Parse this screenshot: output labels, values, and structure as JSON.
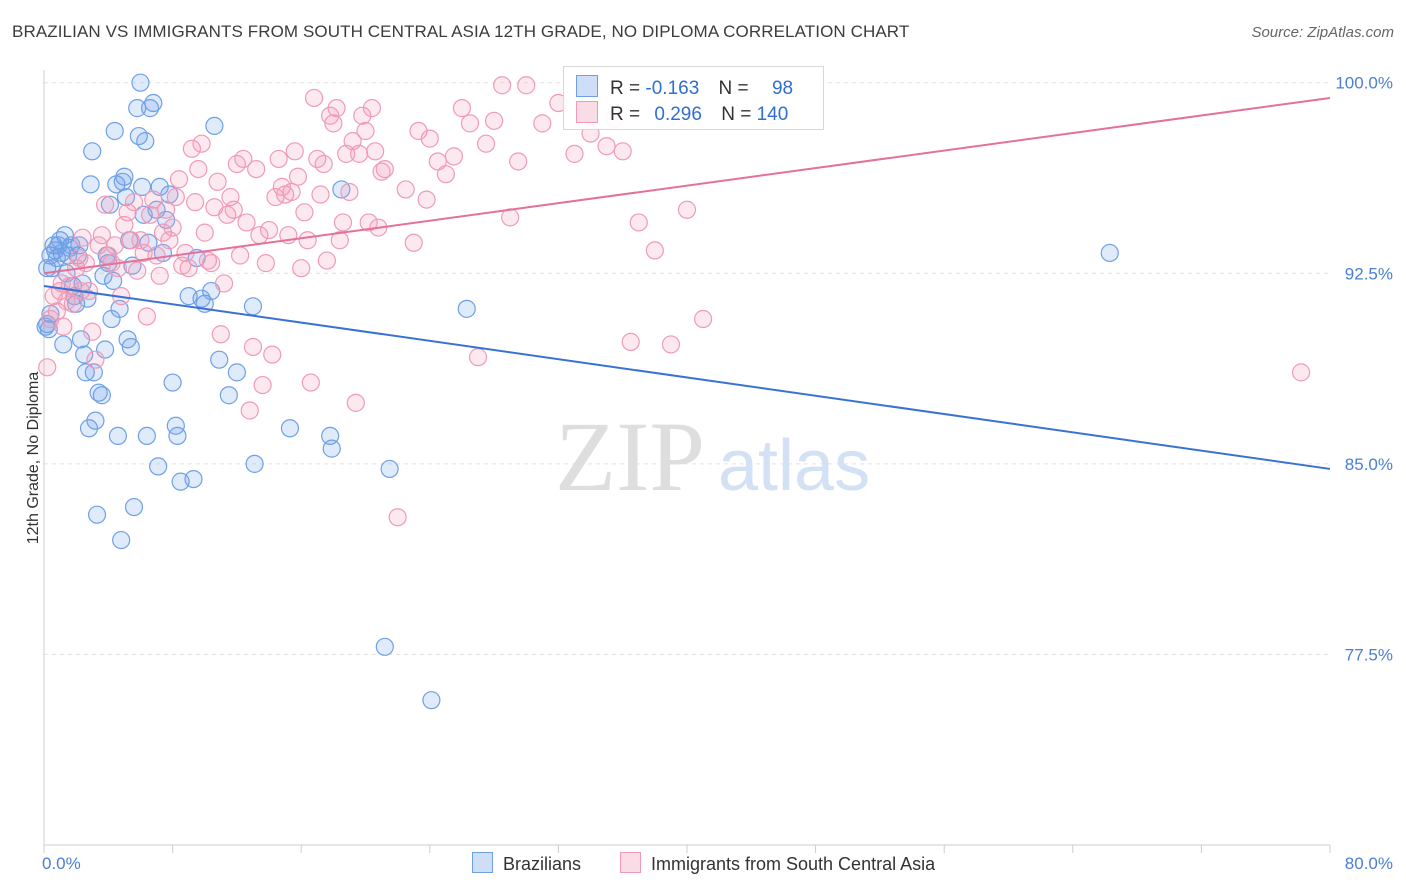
{
  "title": "BRAZILIAN VS IMMIGRANTS FROM SOUTH CENTRAL ASIA 12TH GRADE, NO DIPLOMA CORRELATION CHART",
  "source": "Source: ZipAtlas.com",
  "watermark": {
    "zip": "ZIP",
    "atlas": "atlas"
  },
  "legend": {
    "rows": [
      {
        "r_label": "R =",
        "r_value": "-0.163",
        "n_label": "N =",
        "n_value": "98",
        "color": "#6fa0e6"
      },
      {
        "r_label": "R =",
        "r_value": "0.296",
        "n_label": "N =",
        "n_value": "140",
        "color": "#f09ab7"
      }
    ]
  },
  "bottom_legend": [
    {
      "label": "Brazilians",
      "color": "#6fa0e6"
    },
    {
      "label": "Immigrants from South Central Asia",
      "color": "#f09ab7"
    }
  ],
  "chart_data": {
    "type": "scatter",
    "title": "BRAZILIAN VS IMMIGRANTS FROM SOUTH CENTRAL ASIA 12TH GRADE, NO DIPLOMA CORRELATION CHART",
    "xlabel": "",
    "ylabel": "12th Grade, No Diploma",
    "xlim": [
      0,
      80
    ],
    "ylim": [
      70,
      100.5
    ],
    "x_tick_labels": [
      "0.0%",
      "80.0%"
    ],
    "y_ticks": [
      77.5,
      85.0,
      92.5,
      100.0
    ],
    "y_tick_labels": [
      "77.5%",
      "85.0%",
      "92.5%",
      "100.0%"
    ],
    "grid": true,
    "series": [
      {
        "name": "Brazilians",
        "color": "#6fa0e6",
        "trend": {
          "x": [
            0,
            80
          ],
          "y": [
            92.0,
            84.8
          ]
        },
        "points": [
          [
            0.2,
            90.5
          ],
          [
            0.3,
            90.3
          ],
          [
            0.4,
            93.2
          ],
          [
            0.5,
            92.7
          ],
          [
            0.6,
            93.6
          ],
          [
            0.7,
            93.4
          ],
          [
            0.8,
            93.1
          ],
          [
            0.9,
            93.6
          ],
          [
            1.0,
            93.8
          ],
          [
            1.1,
            93.3
          ],
          [
            1.3,
            94.0
          ],
          [
            1.4,
            92.5
          ],
          [
            1.5,
            93.2
          ],
          [
            1.6,
            93.5
          ],
          [
            1.7,
            93.6
          ],
          [
            1.8,
            92.0
          ],
          [
            1.9,
            91.6
          ],
          [
            2.0,
            91.3
          ],
          [
            2.1,
            93.2
          ],
          [
            2.2,
            93.6
          ],
          [
            2.3,
            89.9
          ],
          [
            2.4,
            92.1
          ],
          [
            2.5,
            89.3
          ],
          [
            2.6,
            88.6
          ],
          [
            2.7,
            91.5
          ],
          [
            2.8,
            86.4
          ],
          [
            2.9,
            96.0
          ],
          [
            3.0,
            97.3
          ],
          [
            3.1,
            88.6
          ],
          [
            3.2,
            86.7
          ],
          [
            3.3,
            83.0
          ],
          [
            3.4,
            87.8
          ],
          [
            3.6,
            87.7
          ],
          [
            3.7,
            92.4
          ],
          [
            3.8,
            89.5
          ],
          [
            3.9,
            93.2
          ],
          [
            4.0,
            92.9
          ],
          [
            4.1,
            95.2
          ],
          [
            4.2,
            90.7
          ],
          [
            4.3,
            92.2
          ],
          [
            4.4,
            98.1
          ],
          [
            4.5,
            96.0
          ],
          [
            4.6,
            86.1
          ],
          [
            4.7,
            91.1
          ],
          [
            4.8,
            82.0
          ],
          [
            4.9,
            96.1
          ],
          [
            5.0,
            96.3
          ],
          [
            5.1,
            95.5
          ],
          [
            5.2,
            89.9
          ],
          [
            5.3,
            93.8
          ],
          [
            5.4,
            89.6
          ],
          [
            5.5,
            92.8
          ],
          [
            5.6,
            83.3
          ],
          [
            5.8,
            99.0
          ],
          [
            5.9,
            97.9
          ],
          [
            6.0,
            100.0
          ],
          [
            6.1,
            95.9
          ],
          [
            6.2,
            94.8
          ],
          [
            6.3,
            97.7
          ],
          [
            6.4,
            86.1
          ],
          [
            6.5,
            93.7
          ],
          [
            6.6,
            99.0
          ],
          [
            6.8,
            99.2
          ],
          [
            7.0,
            95.0
          ],
          [
            7.1,
            84.9
          ],
          [
            7.2,
            95.9
          ],
          [
            7.4,
            93.3
          ],
          [
            7.6,
            94.6
          ],
          [
            7.8,
            95.6
          ],
          [
            8.0,
            88.2
          ],
          [
            8.2,
            86.5
          ],
          [
            8.3,
            86.1
          ],
          [
            8.5,
            84.3
          ],
          [
            9.0,
            91.6
          ],
          [
            9.3,
            84.4
          ],
          [
            9.5,
            93.1
          ],
          [
            9.8,
            91.5
          ],
          [
            10.0,
            91.3
          ],
          [
            10.4,
            91.8
          ],
          [
            10.6,
            98.3
          ],
          [
            10.9,
            89.1
          ],
          [
            11.5,
            87.7
          ],
          [
            12.0,
            88.6
          ],
          [
            13.0,
            91.2
          ],
          [
            13.1,
            85.0
          ],
          [
            15.3,
            86.4
          ],
          [
            17.8,
            86.1
          ],
          [
            17.9,
            85.6
          ],
          [
            18.5,
            95.8
          ],
          [
            21.2,
            77.8
          ],
          [
            21.5,
            84.8
          ],
          [
            24.1,
            75.7
          ],
          [
            26.3,
            91.1
          ],
          [
            0.1,
            90.4
          ],
          [
            0.4,
            90.9
          ],
          [
            1.2,
            89.7
          ],
          [
            66.3,
            93.3
          ],
          [
            0.2,
            92.7
          ]
        ]
      },
      {
        "name": "Immigrants from South Central Asia",
        "color": "#f09ab7",
        "trend": {
          "x": [
            0,
            80
          ],
          "y": [
            92.5,
            99.4
          ]
        },
        "points": [
          [
            0.2,
            88.8
          ],
          [
            0.4,
            90.7
          ],
          [
            0.6,
            91.6
          ],
          [
            0.8,
            91.0
          ],
          [
            1.0,
            91.8
          ],
          [
            1.2,
            90.4
          ],
          [
            1.4,
            91.4
          ],
          [
            1.6,
            92.0
          ],
          [
            1.8,
            91.3
          ],
          [
            2.0,
            92.7
          ],
          [
            2.2,
            93.1
          ],
          [
            2.4,
            93.9
          ],
          [
            2.6,
            92.9
          ],
          [
            2.8,
            91.8
          ],
          [
            3.0,
            90.2
          ],
          [
            3.2,
            89.1
          ],
          [
            3.4,
            93.6
          ],
          [
            3.6,
            94.0
          ],
          [
            3.8,
            95.2
          ],
          [
            4.0,
            93.2
          ],
          [
            4.2,
            92.9
          ],
          [
            4.4,
            93.6
          ],
          [
            4.6,
            92.7
          ],
          [
            4.8,
            91.6
          ],
          [
            5.0,
            94.4
          ],
          [
            5.2,
            94.9
          ],
          [
            5.4,
            93.8
          ],
          [
            5.6,
            95.3
          ],
          [
            5.8,
            92.6
          ],
          [
            6.0,
            93.8
          ],
          [
            6.2,
            93.3
          ],
          [
            6.4,
            90.8
          ],
          [
            6.6,
            94.8
          ],
          [
            6.8,
            95.4
          ],
          [
            7.0,
            93.2
          ],
          [
            7.2,
            92.4
          ],
          [
            7.4,
            94.1
          ],
          [
            7.6,
            95.0
          ],
          [
            7.8,
            93.8
          ],
          [
            8.0,
            94.3
          ],
          [
            8.2,
            95.5
          ],
          [
            8.4,
            96.2
          ],
          [
            8.6,
            92.8
          ],
          [
            8.8,
            93.3
          ],
          [
            9.0,
            92.7
          ],
          [
            9.2,
            97.4
          ],
          [
            9.4,
            95.3
          ],
          [
            9.6,
            96.6
          ],
          [
            9.8,
            97.6
          ],
          [
            10.0,
            94.1
          ],
          [
            10.2,
            93.0
          ],
          [
            10.4,
            92.9
          ],
          [
            10.6,
            95.1
          ],
          [
            10.8,
            96.1
          ],
          [
            11.0,
            90.1
          ],
          [
            11.2,
            92.1
          ],
          [
            11.4,
            94.8
          ],
          [
            11.6,
            95.5
          ],
          [
            11.8,
            95.0
          ],
          [
            12.0,
            96.8
          ],
          [
            12.2,
            93.2
          ],
          [
            12.4,
            97.0
          ],
          [
            12.6,
            94.5
          ],
          [
            12.8,
            87.1
          ],
          [
            13.0,
            89.6
          ],
          [
            13.2,
            96.6
          ],
          [
            13.4,
            94.0
          ],
          [
            13.6,
            88.1
          ],
          [
            13.8,
            92.9
          ],
          [
            14.0,
            94.2
          ],
          [
            14.2,
            89.3
          ],
          [
            14.4,
            95.5
          ],
          [
            14.6,
            97.0
          ],
          [
            14.8,
            95.9
          ],
          [
            15.0,
            95.6
          ],
          [
            15.2,
            94.0
          ],
          [
            15.4,
            95.7
          ],
          [
            15.6,
            97.3
          ],
          [
            15.8,
            96.3
          ],
          [
            16.0,
            92.7
          ],
          [
            16.2,
            94.9
          ],
          [
            16.4,
            93.8
          ],
          [
            16.6,
            88.2
          ],
          [
            16.8,
            99.4
          ],
          [
            17.0,
            97.0
          ],
          [
            17.2,
            95.6
          ],
          [
            17.4,
            96.8
          ],
          [
            17.6,
            93.0
          ],
          [
            17.8,
            98.7
          ],
          [
            18.0,
            98.4
          ],
          [
            18.2,
            99.0
          ],
          [
            18.4,
            93.8
          ],
          [
            18.6,
            94.5
          ],
          [
            18.8,
            97.2
          ],
          [
            19.0,
            95.7
          ],
          [
            19.2,
            97.7
          ],
          [
            19.4,
            87.4
          ],
          [
            19.6,
            97.2
          ],
          [
            19.8,
            98.7
          ],
          [
            20.0,
            98.1
          ],
          [
            20.2,
            94.5
          ],
          [
            20.4,
            99.0
          ],
          [
            20.6,
            97.3
          ],
          [
            20.8,
            94.3
          ],
          [
            21.0,
            96.5
          ],
          [
            21.2,
            96.6
          ],
          [
            22.0,
            82.9
          ],
          [
            22.5,
            95.8
          ],
          [
            23.0,
            93.7
          ],
          [
            23.3,
            98.1
          ],
          [
            24.0,
            97.8
          ],
          [
            24.5,
            96.9
          ],
          [
            25.0,
            96.4
          ],
          [
            25.5,
            97.1
          ],
          [
            26.0,
            99.0
          ],
          [
            26.5,
            98.4
          ],
          [
            27.0,
            89.2
          ],
          [
            27.5,
            97.6
          ],
          [
            28.0,
            98.5
          ],
          [
            28.5,
            99.9
          ],
          [
            29.0,
            94.7
          ],
          [
            29.5,
            96.9
          ],
          [
            30.0,
            99.9
          ],
          [
            31.0,
            98.4
          ],
          [
            32.0,
            99.2
          ],
          [
            33.0,
            97.2
          ],
          [
            34.0,
            98.0
          ],
          [
            35.0,
            97.5
          ],
          [
            36.0,
            97.3
          ],
          [
            37.0,
            94.5
          ],
          [
            38.0,
            93.4
          ],
          [
            39.0,
            89.7
          ],
          [
            40.0,
            95.0
          ],
          [
            41.0,
            90.7
          ],
          [
            36.5,
            89.8
          ],
          [
            35.5,
            98.6
          ],
          [
            23.8,
            95.4
          ],
          [
            2.3,
            91.8
          ],
          [
            1.1,
            92.1
          ],
          [
            78.2,
            88.6
          ]
        ]
      }
    ]
  }
}
